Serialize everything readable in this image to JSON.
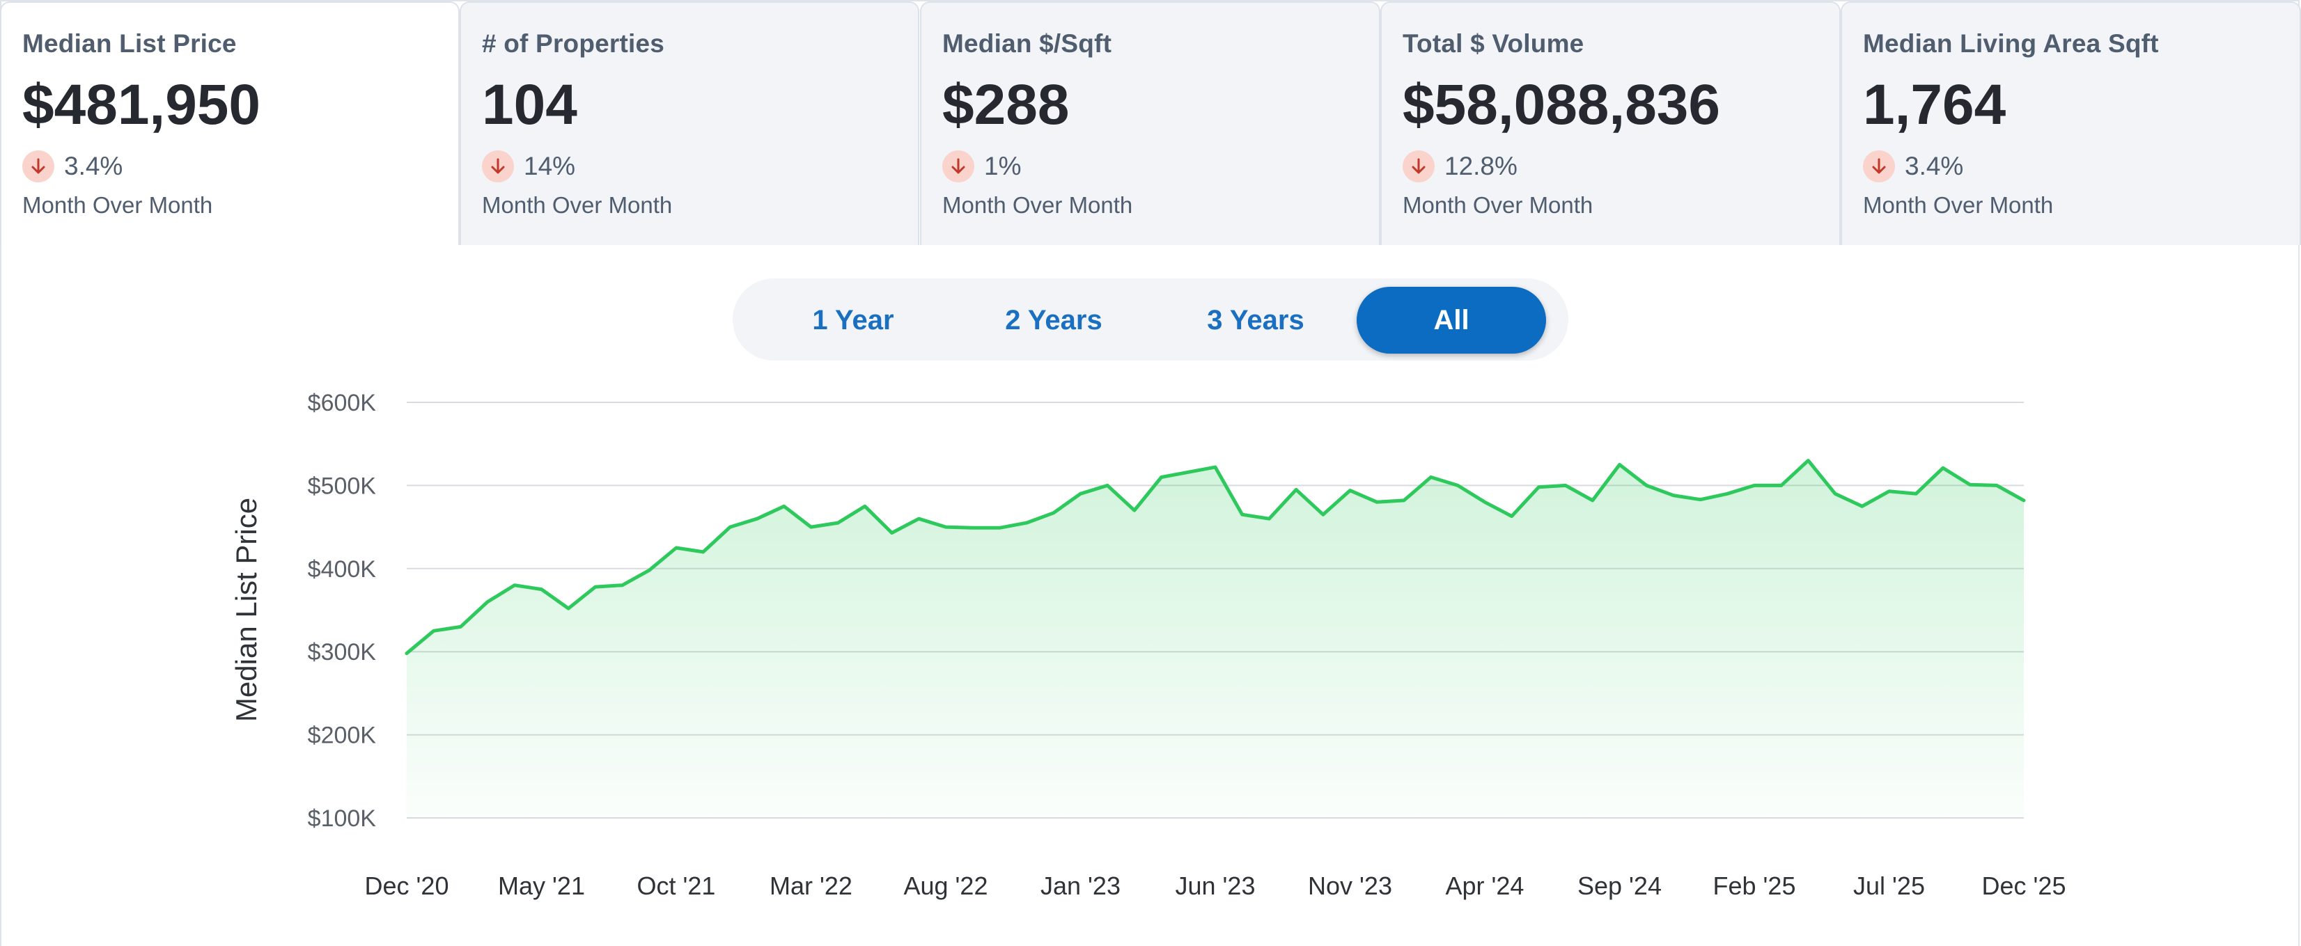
{
  "tabs": [
    {
      "title": "Median List Price",
      "value": "$481,950",
      "change": "3.4%",
      "subtitle": "Month Over Month",
      "active": true
    },
    {
      "title": "# of Properties",
      "value": "104",
      "change": "14%",
      "subtitle": "Month Over Month",
      "active": false
    },
    {
      "title": "Median $/Sqft",
      "value": "$288",
      "change": "1%",
      "subtitle": "Month Over Month",
      "active": false
    },
    {
      "title": "Total $ Volume",
      "value": "$58,088,836",
      "change": "12.8%",
      "subtitle": "Month Over Month",
      "active": false
    },
    {
      "title": "Median Living Area Sqft",
      "value": "1,764",
      "change": "3.4%",
      "subtitle": "Month Over Month",
      "active": false
    }
  ],
  "range_buttons": [
    {
      "label": "1 Year",
      "selected": false
    },
    {
      "label": "2 Years",
      "selected": false
    },
    {
      "label": "3 Years",
      "selected": false
    },
    {
      "label": "All",
      "selected": true
    }
  ],
  "colors": {
    "line": "#2ec95c",
    "fill": "#2ec95c",
    "accent": "#0b6cc2",
    "down_badge": "#fbd3cd",
    "down_arrow": "#c0392b"
  },
  "chart_data": {
    "type": "area",
    "ylabel": "Median List Price",
    "ylim": [
      100000,
      600000
    ],
    "y_ticks": [
      100000,
      200000,
      300000,
      400000,
      500000,
      600000
    ],
    "y_tick_labels": [
      "$100K",
      "$200K",
      "$300K",
      "$400K",
      "$500K",
      "$600K"
    ],
    "x_tick_labels": [
      "Dec '20",
      "May '21",
      "Oct '21",
      "Mar '22",
      "Aug '22",
      "Jan '23",
      "Jun '23",
      "Nov '23",
      "Apr '24",
      "Sep '24",
      "Feb '25",
      "Jul '25",
      "Dec '25"
    ],
    "grid": true,
    "start_month": "2020-12",
    "values": [
      298000,
      325000,
      330000,
      360000,
      380000,
      375000,
      352000,
      378000,
      380000,
      398000,
      425000,
      420000,
      450000,
      460000,
      475000,
      450000,
      455000,
      475000,
      443000,
      460000,
      450000,
      449000,
      449000,
      455000,
      467000,
      490000,
      500000,
      470000,
      510000,
      516000,
      522000,
      465000,
      460000,
      495000,
      465000,
      494000,
      480000,
      482000,
      510000,
      500000,
      480000,
      463000,
      498000,
      500000,
      482000,
      525000,
      500000,
      488000,
      483000,
      490000,
      500000,
      500000,
      530000,
      490000,
      475000,
      493000,
      490000,
      521000,
      501000,
      500000,
      482000
    ]
  }
}
